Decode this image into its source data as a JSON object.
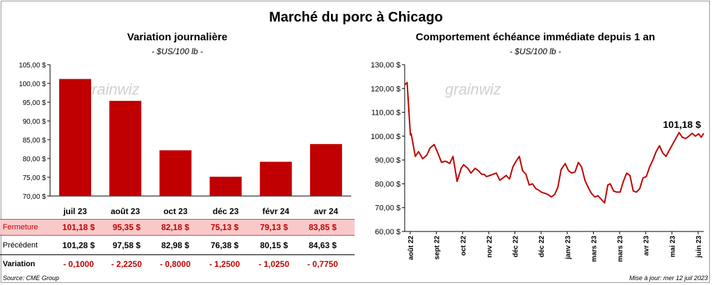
{
  "title": "Marché du porc à Chicago",
  "left_panel": {
    "title": "Variation journalière",
    "unit": "- $US/100 lb -"
  },
  "right_panel": {
    "title": "Comportement échéance immédiate depuis 1 an",
    "unit": "- $US/100 lb -",
    "last_value_label": "101,18 $"
  },
  "table": {
    "row_labels": [
      "Fermeture",
      "Précédent",
      "Variation"
    ],
    "fermeture": [
      "101,18  $",
      "95,35  $",
      "82,18  $",
      "75,13  $",
      "79,13  $",
      "83,85  $"
    ],
    "precedent": [
      "101,28  $",
      "97,58  $",
      "82,98  $",
      "76,38  $",
      "80,15  $",
      "84,63  $"
    ],
    "variation": [
      "- 0,1000",
      "- 2,2250",
      "- 0,8000",
      "- 1,2500",
      "- 1,0250",
      "- 0,7750"
    ]
  },
  "footer": {
    "source": "Source: CME Group",
    "updated": "Mise à jour: mer 12 juil 2023"
  },
  "watermark": "grainwiz",
  "colors": {
    "bar": "#c00000",
    "line": "#c00000",
    "fermeture_bg": "#f9c9c9"
  },
  "chart_data": [
    {
      "type": "bar",
      "categories": [
        "juil 23",
        "août 23",
        "oct 23",
        "déc 23",
        "févr 24",
        "avr 24"
      ],
      "values": [
        101.18,
        95.35,
        82.18,
        75.13,
        79.13,
        83.85
      ],
      "ylim": [
        70,
        105
      ],
      "yticks": [
        "70,00 $",
        "75,00 $",
        "80,00 $",
        "85,00 $",
        "90,00 $",
        "95,00 $",
        "100,00 $",
        "105,00 $"
      ],
      "grid": false
    },
    {
      "type": "line",
      "ylim": [
        60,
        130
      ],
      "yticks": [
        "60,00 $",
        "70,00 $",
        "80,00 $",
        "90,00 $",
        "100,00 $",
        "110,00 $",
        "120,00 $",
        "130,00 $"
      ],
      "xticks": [
        "août 22",
        "sept 22",
        "oct 22",
        "nov 22",
        "déc 22",
        "déc 22",
        "janv 23",
        "mars 23",
        "mars 23",
        "avr 23",
        "mai 23",
        "juin 23"
      ],
      "x": [
        "2022-07-12",
        "2022-07-15",
        "2022-07-19",
        "2022-07-20",
        "2022-07-25",
        "2022-07-29",
        "2022-08-03",
        "2022-08-08",
        "2022-08-12",
        "2022-08-17",
        "2022-08-22",
        "2022-08-26",
        "2022-08-31",
        "2022-09-05",
        "2022-09-09",
        "2022-09-14",
        "2022-09-19",
        "2022-09-22",
        "2022-09-27",
        "2022-10-01",
        "2022-10-06",
        "2022-10-10",
        "2022-10-14",
        "2022-10-17",
        "2022-10-20",
        "2022-10-24",
        "2022-10-28",
        "2022-11-01",
        "2022-11-05",
        "2022-11-09",
        "2022-11-13",
        "2022-11-17",
        "2022-11-21",
        "2022-11-25",
        "2022-11-29",
        "2022-12-03",
        "2022-12-07",
        "2022-12-11",
        "2022-12-15",
        "2022-12-19",
        "2022-12-22",
        "2022-12-26",
        "2022-12-30",
        "2023-01-03",
        "2023-01-07",
        "2023-01-11",
        "2023-01-15",
        "2023-01-19",
        "2023-01-24",
        "2023-01-28",
        "2023-02-01",
        "2023-02-05",
        "2023-02-09",
        "2023-02-13",
        "2023-02-17",
        "2023-02-21",
        "2023-02-25",
        "2023-03-01",
        "2023-03-05",
        "2023-03-09",
        "2023-03-13",
        "2023-03-17",
        "2023-03-20",
        "2023-03-24",
        "2023-03-28",
        "2023-04-01",
        "2023-04-05",
        "2023-04-09",
        "2023-04-13",
        "2023-04-17",
        "2023-04-21",
        "2023-04-25",
        "2023-04-29",
        "2023-05-03",
        "2023-05-07",
        "2023-05-11",
        "2023-05-15",
        "2023-05-19",
        "2023-05-23",
        "2023-05-27",
        "2023-05-31",
        "2023-06-04",
        "2023-06-08",
        "2023-06-12",
        "2023-06-16",
        "2023-06-20",
        "2023-06-24",
        "2023-06-28",
        "2023-07-02",
        "2023-07-06",
        "2023-07-09",
        "2023-07-12"
      ],
      "values": [
        121.5,
        122.5,
        100.5,
        101,
        91.5,
        93.5,
        90.5,
        92,
        95,
        96.5,
        92.5,
        89,
        89.5,
        88.5,
        91.5,
        81,
        86.5,
        88,
        86.5,
        84.5,
        86.5,
        85.5,
        84,
        84,
        83,
        83.5,
        84,
        84.5,
        81.5,
        82.5,
        83.5,
        82,
        87,
        89.5,
        91.5,
        85.5,
        84,
        79.5,
        80,
        78,
        77.5,
        76.5,
        76,
        75.5,
        74.5,
        75.5,
        78.5,
        86,
        88.5,
        85.5,
        84.5,
        85,
        89,
        87,
        81.5,
        78.5,
        76,
        74.5,
        75,
        73.5,
        72,
        79.5,
        80,
        77,
        76.5,
        76.5,
        81,
        84.5,
        83.5,
        77,
        76.5,
        78,
        82.5,
        83,
        87,
        90,
        93.5,
        96,
        93,
        91.5,
        94,
        96.5,
        99,
        101.5,
        99.5,
        99,
        100,
        101.18,
        100,
        101,
        99.5,
        101.18
      ],
      "grid": false
    }
  ]
}
